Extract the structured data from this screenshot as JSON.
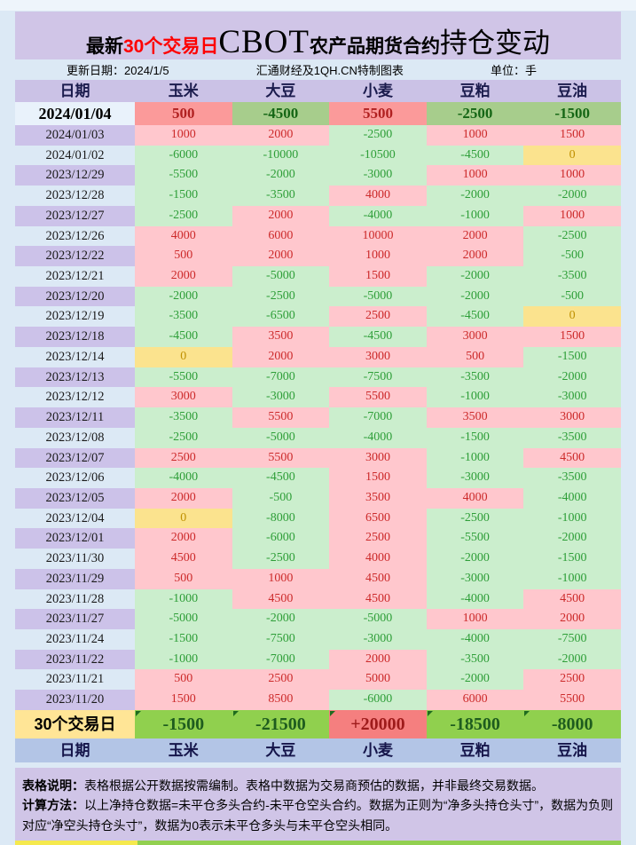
{
  "title": {
    "prefix": "最新",
    "highlight": "30个交易日",
    "brand": "CBOT",
    "middle": "农产品期货合约",
    "suffix": "持仓变动"
  },
  "meta": {
    "update_date": "更新日期：2024/1/5",
    "source": "汇通财经及1QH.CN特制图表",
    "unit": "单位：手"
  },
  "table": {
    "columns": [
      "日期",
      "玉米",
      "大豆",
      "小麦",
      "豆粕",
      "豆油"
    ],
    "rows": [
      {
        "date": "2024/01/04",
        "values": [
          500,
          -4500,
          5500,
          -2500,
          -1500
        ]
      },
      {
        "date": "2024/01/03",
        "values": [
          1000,
          2000,
          -2500,
          1000,
          1500
        ]
      },
      {
        "date": "2024/01/02",
        "values": [
          -6000,
          -10000,
          -10500,
          -4500,
          0
        ]
      },
      {
        "date": "2023/12/29",
        "values": [
          -5500,
          -2000,
          -3000,
          1000,
          1000
        ]
      },
      {
        "date": "2023/12/28",
        "values": [
          -1500,
          -3500,
          4000,
          -2000,
          -2000
        ]
      },
      {
        "date": "2023/12/27",
        "values": [
          -2500,
          2000,
          -4000,
          -1000,
          1000
        ]
      },
      {
        "date": "2023/12/26",
        "values": [
          4000,
          6000,
          10000,
          2000,
          -2500
        ]
      },
      {
        "date": "2023/12/22",
        "values": [
          500,
          2000,
          1000,
          2000,
          -500
        ]
      },
      {
        "date": "2023/12/21",
        "values": [
          2000,
          -5000,
          1500,
          -2000,
          -3500
        ]
      },
      {
        "date": "2023/12/20",
        "values": [
          -2000,
          -2500,
          -5000,
          -2000,
          -500
        ]
      },
      {
        "date": "2023/12/19",
        "values": [
          -3500,
          -6500,
          2500,
          -4500,
          0
        ]
      },
      {
        "date": "2023/12/18",
        "values": [
          -4500,
          3500,
          -4500,
          3000,
          1500
        ]
      },
      {
        "date": "2023/12/14",
        "values": [
          0,
          2000,
          3000,
          500,
          -1500
        ]
      },
      {
        "date": "2023/12/13",
        "values": [
          -5500,
          -7000,
          -7500,
          -3500,
          -2000
        ]
      },
      {
        "date": "2023/12/12",
        "values": [
          3000,
          -3000,
          5500,
          -1000,
          -3000
        ]
      },
      {
        "date": "2023/12/11",
        "values": [
          -3500,
          5500,
          -7000,
          3500,
          3000
        ]
      },
      {
        "date": "2023/12/08",
        "values": [
          -2500,
          -5000,
          -4000,
          -1500,
          -3500
        ]
      },
      {
        "date": "2023/12/07",
        "values": [
          2500,
          5500,
          3000,
          -1000,
          4500
        ]
      },
      {
        "date": "2023/12/06",
        "values": [
          -4000,
          -4500,
          1500,
          -3000,
          -3500
        ]
      },
      {
        "date": "2023/12/05",
        "values": [
          2000,
          -500,
          3500,
          4000,
          -4000
        ]
      },
      {
        "date": "2023/12/04",
        "values": [
          0,
          -8000,
          6500,
          -2500,
          -1000
        ]
      },
      {
        "date": "2023/12/01",
        "values": [
          2000,
          -6000,
          2500,
          -5500,
          -2000
        ]
      },
      {
        "date": "2023/11/30",
        "values": [
          4500,
          -2500,
          4000,
          -2000,
          -1500
        ]
      },
      {
        "date": "2023/11/29",
        "values": [
          500,
          1000,
          4500,
          -3000,
          -1000
        ]
      },
      {
        "date": "2023/11/28",
        "values": [
          -1000,
          4500,
          4500,
          -4000,
          4500
        ]
      },
      {
        "date": "2023/11/27",
        "values": [
          -5000,
          -2000,
          -5000,
          1000,
          2000
        ]
      },
      {
        "date": "2023/11/24",
        "values": [
          -1500,
          -7500,
          -3000,
          -4000,
          -7500
        ]
      },
      {
        "date": "2023/11/22",
        "values": [
          -1000,
          -7000,
          2000,
          -3500,
          -2000
        ]
      },
      {
        "date": "2023/11/21",
        "values": [
          500,
          2500,
          5000,
          -2000,
          2500
        ]
      },
      {
        "date": "2023/11/20",
        "values": [
          1500,
          8500,
          -6000,
          6000,
          5500
        ]
      }
    ],
    "summary": {
      "label": "30个交易日",
      "values": [
        "-1500",
        "-21500",
        "+20000",
        "-18500",
        "-8000"
      ]
    },
    "footer_columns": [
      "日期",
      "玉米",
      "大豆",
      "小麦",
      "豆粕",
      "豆油"
    ]
  },
  "notes": {
    "note1_label": "表格说明：",
    "note1_text": "表格根据公开数据按需编制。表格中数据为交易商预估的数据，并非最终交易数据。",
    "note2_label": "计算方法：",
    "note2_text": "以上净持仓数据=未平仓多头合约-未平仓空头合约。数据为正则为“净多头持仓头寸”，数据为负则对应“净空头持仓头寸”，数据为0表示未平仓多头与未平仓空头相同。"
  },
  "colors": {
    "page_bg": "#dce9f5",
    "title_bar_bg": "#d0c5e7",
    "title_highlight": "#fe0000",
    "header_bg": "#cbc2e6",
    "date_alt_bg": "#ccc2e9",
    "positive_bg": "#ffc7cd",
    "positive_text": "#cc2a2a",
    "negative_bg": "#cbeecd",
    "negative_text": "#2e9e38",
    "zero_bg": "#fbe38e",
    "zero_text": "#bf9000",
    "latest_pos_bg": "#fb9a9a",
    "latest_neg_bg": "#a7cd8c",
    "summary_label_bg": "#ffe596",
    "summary_neg_bg": "#90d04e",
    "summary_pos_bg": "#f57f7f",
    "footer_header_bg": "#b3c5e6",
    "notes_bg": "#d0c5e7"
  },
  "chart_data": {
    "type": "table",
    "title": "最新30个交易日CBOT农产品期货合约持仓变动",
    "unit": "手",
    "update_date": "2024/1/5",
    "source": "汇通财经及1QH.CN特制图表",
    "columns": [
      "日期",
      "玉米",
      "大豆",
      "小麦",
      "豆粕",
      "豆油"
    ],
    "rows": [
      [
        "2024/01/04",
        500,
        -4500,
        5500,
        -2500,
        -1500
      ],
      [
        "2024/01/03",
        1000,
        2000,
        -2500,
        1000,
        1500
      ],
      [
        "2024/01/02",
        -6000,
        -10000,
        -10500,
        -4500,
        0
      ],
      [
        "2023/12/29",
        -5500,
        -2000,
        -3000,
        1000,
        1000
      ],
      [
        "2023/12/28",
        -1500,
        -3500,
        4000,
        -2000,
        -2000
      ],
      [
        "2023/12/27",
        -2500,
        2000,
        -4000,
        -1000,
        1000
      ],
      [
        "2023/12/26",
        4000,
        6000,
        10000,
        2000,
        -2500
      ],
      [
        "2023/12/22",
        500,
        2000,
        1000,
        2000,
        -500
      ],
      [
        "2023/12/21",
        2000,
        -5000,
        1500,
        -2000,
        -3500
      ],
      [
        "2023/12/20",
        -2000,
        -2500,
        -5000,
        -2000,
        -500
      ],
      [
        "2023/12/19",
        -3500,
        -6500,
        2500,
        -4500,
        0
      ],
      [
        "2023/12/18",
        -4500,
        3500,
        -4500,
        3000,
        1500
      ],
      [
        "2023/12/14",
        0,
        2000,
        3000,
        500,
        -1500
      ],
      [
        "2023/12/13",
        -5500,
        -7000,
        -7500,
        -3500,
        -2000
      ],
      [
        "2023/12/12",
        3000,
        -3000,
        5500,
        -1000,
        -3000
      ],
      [
        "2023/12/11",
        -3500,
        5500,
        -7000,
        3500,
        3000
      ],
      [
        "2023/12/08",
        -2500,
        -5000,
        -4000,
        -1500,
        -3500
      ],
      [
        "2023/12/07",
        2500,
        5500,
        3000,
        -1000,
        4500
      ],
      [
        "2023/12/06",
        -4000,
        -4500,
        1500,
        -3000,
        -3500
      ],
      [
        "2023/12/05",
        2000,
        -500,
        3500,
        4000,
        -4000
      ],
      [
        "2023/12/04",
        0,
        -8000,
        6500,
        -2500,
        -1000
      ],
      [
        "2023/12/01",
        2000,
        -6000,
        2500,
        -5500,
        -2000
      ],
      [
        "2023/11/30",
        4500,
        -2500,
        4000,
        -2000,
        -1500
      ],
      [
        "2023/11/29",
        500,
        1000,
        4500,
        -3000,
        -1000
      ],
      [
        "2023/11/28",
        -1000,
        4500,
        4500,
        -4000,
        4500
      ],
      [
        "2023/11/27",
        -5000,
        -2000,
        -5000,
        1000,
        2000
      ],
      [
        "2023/11/24",
        -1500,
        -7500,
        -3000,
        -4000,
        -7500
      ],
      [
        "2023/11/22",
        -1000,
        -7000,
        2000,
        -3500,
        -2000
      ],
      [
        "2023/11/21",
        500,
        2500,
        5000,
        -2000,
        2500
      ],
      [
        "2023/11/20",
        1500,
        8500,
        -6000,
        6000,
        5500
      ]
    ],
    "summary_row": [
      "30个交易日",
      -1500,
      -21500,
      20000,
      -18500,
      -8000
    ],
    "color_coding": "positive=pink, negative=green, zero=yellow"
  }
}
